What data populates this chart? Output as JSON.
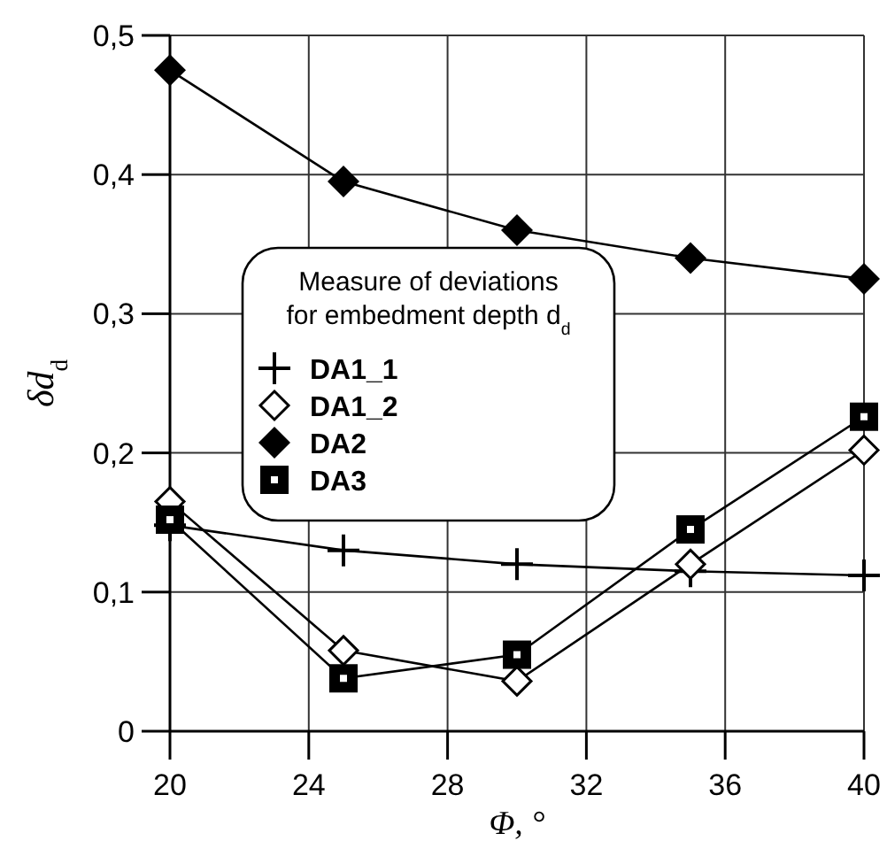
{
  "chart_data": {
    "type": "line",
    "xlabel": "Φ, °",
    "ylabel": "δd$_{d}$",
    "legend_title": "Measure of deviations for embedment depth d$_{d}$",
    "legend": "left",
    "grid": true,
    "x": [
      20,
      25,
      30,
      35,
      40
    ],
    "xlim": [
      20,
      40
    ],
    "xticks": [
      20,
      24,
      28,
      32,
      36,
      40
    ],
    "ylim": [
      0,
      0.5
    ],
    "yticks": [
      0,
      {
        "value": 0.1,
        "label": "0,1"
      },
      {
        "value": 0.2,
        "label": "0,2"
      },
      {
        "value": 0.3,
        "label": "0,3"
      },
      {
        "value": 0.4,
        "label": "0,4"
      },
      {
        "value": 0.5,
        "label": "0,5"
      }
    ],
    "series": [
      {
        "name": "DA1_1",
        "color": "#000000",
        "marker": "cross",
        "values": [
          0.148,
          0.13,
          0.12,
          0.115,
          0.112
        ]
      },
      {
        "name": "DA1_2",
        "color": "#000000",
        "marker": "diamond-open",
        "values": [
          0.165,
          0.058,
          0.036,
          0.12,
          0.202
        ]
      },
      {
        "name": "DA2",
        "color": "#000000",
        "marker": "diamond",
        "values": [
          0.475,
          0.395,
          0.36,
          0.34,
          0.325
        ]
      },
      {
        "name": "DA3",
        "color": "#000000",
        "marker": "square",
        "values": [
          0.152,
          0.038,
          0.055,
          0.145,
          0.226
        ]
      }
    ]
  }
}
